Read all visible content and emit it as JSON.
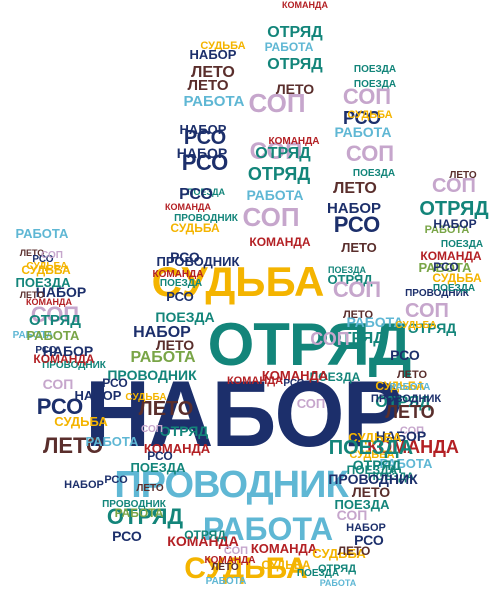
{
  "colors": {
    "navy": "#1c2f6b",
    "teal": "#13857a",
    "yellow": "#f4b400",
    "light_blue": "#5fb7d4",
    "red": "#b32024",
    "lavender": "#c6a6cc",
    "green": "#79a547",
    "dark_brown": "#5a2e2c"
  },
  "words": [
    {
      "text": "НАБОР",
      "color": "navy"
    },
    {
      "text": "ОТРЯД",
      "color": "teal"
    },
    {
      "text": "ПРОВОДНИК",
      "color": "light_blue"
    },
    {
      "text": "СУДЬБА",
      "color": "yellow"
    },
    {
      "text": "РАБОТА",
      "color": "light_blue"
    },
    {
      "text": "ЛЕТО",
      "color": "dark_brown"
    },
    {
      "text": "РСО",
      "color": "navy"
    },
    {
      "text": "КОМАНДА",
      "color": "red"
    },
    {
      "text": "СОП",
      "color": "lavender"
    },
    {
      "text": "ПОЕЗДА",
      "color": "teal"
    },
    {
      "text": "ОТРЯД",
      "color": "teal"
    },
    {
      "text": "ЛЕТО",
      "color": "dark_brown"
    },
    {
      "text": "РАБОТА",
      "color": "light_blue"
    },
    {
      "text": "СУДЬБА",
      "color": "yellow"
    },
    {
      "text": "НАБОР",
      "color": "navy"
    },
    {
      "text": "РСО",
      "color": "navy"
    },
    {
      "text": "СОП",
      "color": "lavender"
    },
    {
      "text": "ПОЕЗДА",
      "color": "teal"
    },
    {
      "text": "РАБОТА",
      "color": "light_blue"
    },
    {
      "text": "ОТРЯД",
      "color": "teal"
    },
    {
      "text": "РСО",
      "color": "navy"
    },
    {
      "text": "СОП",
      "color": "lavender"
    },
    {
      "text": "НАБОР",
      "color": "navy"
    },
    {
      "text": "ЛЕТО",
      "color": "dark_brown"
    },
    {
      "text": "КОМАНДА",
      "color": "red"
    },
    {
      "text": "ОТРЯД",
      "color": "teal"
    },
    {
      "text": "СОП",
      "color": "lavender"
    },
    {
      "text": "РАБОТА",
      "color": "light_blue"
    },
    {
      "text": "СУДЬБА",
      "color": "yellow"
    },
    {
      "text": "ПОЕЗДА",
      "color": "teal"
    },
    {
      "text": "РСО",
      "color": "navy"
    },
    {
      "text": "НАБОР",
      "color": "navy"
    },
    {
      "text": "КОМАНДА",
      "color": "red"
    },
    {
      "text": "ЛЕТО",
      "color": "dark_brown"
    },
    {
      "text": "СОП",
      "color": "lavender"
    },
    {
      "text": "ОТРЯД",
      "color": "teal"
    },
    {
      "text": "РАБОТА",
      "color": "light_blue"
    },
    {
      "text": "СУДЬБА",
      "color": "yellow"
    },
    {
      "text": "ПОЕЗДА",
      "color": "teal"
    },
    {
      "text": "ПРОВОДНИК",
      "color": "teal"
    },
    {
      "text": "РСО",
      "color": "navy"
    },
    {
      "text": "НАБОР",
      "color": "navy"
    },
    {
      "text": "ЛЕТО",
      "color": "dark_brown"
    },
    {
      "text": "КОМАНДА",
      "color": "red"
    },
    {
      "text": "СОП",
      "color": "lavender"
    },
    {
      "text": "ОТРЯД",
      "color": "teal"
    },
    {
      "text": "РАБОТА",
      "color": "green"
    },
    {
      "text": "ПОЕЗДА",
      "color": "teal"
    },
    {
      "text": "ЛЕТО",
      "color": "dark_brown"
    },
    {
      "text": "СУДЬБА",
      "color": "yellow"
    },
    {
      "text": "НАБОР",
      "color": "navy"
    },
    {
      "text": "РАБОТА",
      "color": "green"
    },
    {
      "text": "ПРОВОДНИК",
      "color": "navy"
    },
    {
      "text": "РСО",
      "color": "navy"
    },
    {
      "text": "ПОЕЗДА",
      "color": "teal"
    },
    {
      "text": "СОП",
      "color": "lavender"
    },
    {
      "text": "КОМАНДА",
      "color": "red"
    },
    {
      "text": "ЛЕТО",
      "color": "dark_brown"
    },
    {
      "text": "РСО",
      "color": "navy"
    },
    {
      "text": "ОТРЯД",
      "color": "teal"
    },
    {
      "text": "СОП",
      "color": "lavender"
    },
    {
      "text": "РАБОТА",
      "color": "light_blue"
    },
    {
      "text": "СУДЬБА",
      "color": "yellow"
    },
    {
      "text": "ПОЕЗДА",
      "color": "teal"
    },
    {
      "text": "КОМАНДА",
      "color": "red"
    },
    {
      "text": "РСО",
      "color": "navy"
    },
    {
      "text": "НАБОР",
      "color": "navy"
    },
    {
      "text": "ЛЕТО",
      "color": "dark_brown"
    },
    {
      "text": "СОП",
      "color": "lavender"
    },
    {
      "text": "РАБОТА",
      "color": "light_blue"
    },
    {
      "text": "СУДЬБА",
      "color": "yellow"
    },
    {
      "text": "ПРОВОДНИК",
      "color": "teal"
    },
    {
      "text": "ОТРЯД",
      "color": "teal"
    },
    {
      "text": "ПОЕЗДА",
      "color": "teal"
    },
    {
      "text": "РСО",
      "color": "navy"
    },
    {
      "text": "КОМАНДА",
      "color": "red"
    },
    {
      "text": "СОП",
      "color": "lavender"
    },
    {
      "text": "ЛЕТО",
      "color": "dark_brown"
    },
    {
      "text": "РАБОТА",
      "color": "green"
    },
    {
      "text": "НАБОР",
      "color": "navy"
    },
    {
      "text": "СУДЬБА",
      "color": "yellow"
    },
    {
      "text": "ПОЕЗДА",
      "color": "teal"
    },
    {
      "text": "ОТРЯД",
      "color": "teal"
    },
    {
      "text": "РСО",
      "color": "navy"
    },
    {
      "text": "ПРОВОДНИК",
      "color": "navy"
    },
    {
      "text": "КОМАНДА",
      "color": "red"
    },
    {
      "text": "СОП",
      "color": "lavender"
    },
    {
      "text": "ЛЕТО",
      "color": "dark_brown"
    },
    {
      "text": "РАБОТА",
      "color": "light_blue"
    },
    {
      "text": "СУДЬБА",
      "color": "yellow"
    },
    {
      "text": "ПОЕЗДА",
      "color": "teal"
    },
    {
      "text": "ОТРЯД",
      "color": "teal"
    },
    {
      "text": "РСО",
      "color": "navy"
    },
    {
      "text": "НАБОР",
      "color": "navy"
    },
    {
      "text": "ЛЕТО",
      "color": "dark_brown"
    },
    {
      "text": "КОМАНДА",
      "color": "red"
    },
    {
      "text": "СОП",
      "color": "lavender"
    },
    {
      "text": "ПРОВОДНИК",
      "color": "teal"
    },
    {
      "text": "РАБОТА",
      "color": "green"
    },
    {
      "text": "СУДЬБА",
      "color": "yellow"
    },
    {
      "text": "ПОЕЗДА",
      "color": "teal"
    },
    {
      "text": "РСО",
      "color": "navy"
    },
    {
      "text": "ОТРЯД",
      "color": "teal"
    },
    {
      "text": "ЛЕТО",
      "color": "dark_brown"
    },
    {
      "text": "СОП",
      "color": "lavender"
    },
    {
      "text": "КОМАНДА",
      "color": "red"
    },
    {
      "text": "НАБОР",
      "color": "navy"
    },
    {
      "text": "РАБОТА",
      "color": "light_blue"
    },
    {
      "text": "СУДЬБА",
      "color": "yellow"
    },
    {
      "text": "ПОЕЗДА",
      "color": "teal"
    },
    {
      "text": "ПРОВОДНИК",
      "color": "navy"
    },
    {
      "text": "РСО",
      "color": "navy"
    },
    {
      "text": "ЛЕТО",
      "color": "dark_brown"
    },
    {
      "text": "ОТРЯД",
      "color": "teal"
    },
    {
      "text": "СОП",
      "color": "lavender"
    },
    {
      "text": "КОМАНДА",
      "color": "red"
    },
    {
      "text": "РАБОТА",
      "color": "light_blue"
    },
    {
      "text": "СУДЬБА",
      "color": "yellow"
    },
    {
      "text": "ПОЕЗДА",
      "color": "teal"
    },
    {
      "text": "РСО",
      "color": "navy"
    },
    {
      "text": "НАБОР",
      "color": "navy"
    },
    {
      "text": "ЛЕТО",
      "color": "dark_brown"
    },
    {
      "text": "ОТРЯД",
      "color": "teal"
    },
    {
      "text": "КОМАНДА",
      "color": "red"
    },
    {
      "text": "СОП",
      "color": "lavender"
    },
    {
      "text": "РАБОТА",
      "color": "light_blue"
    },
    {
      "text": "СУДЬБА",
      "color": "yellow"
    },
    {
      "text": "ПОЕЗДА",
      "color": "teal"
    },
    {
      "text": "РСО",
      "color": "navy"
    },
    {
      "text": "ПРОВОДНИК",
      "color": "teal"
    },
    {
      "text": "ЛЕТО",
      "color": "dark_brown"
    },
    {
      "text": "ОТРЯД",
      "color": "teal"
    },
    {
      "text": "КОМАНДА",
      "color": "red"
    },
    {
      "text": "РАБОТА",
      "color": "green"
    },
    {
      "text": "НАБОР",
      "color": "navy"
    },
    {
      "text": "СУДЬБА",
      "color": "yellow"
    },
    {
      "text": "ПОЕЗДА",
      "color": "teal"
    },
    {
      "text": "РСО",
      "color": "navy"
    },
    {
      "text": "ЛЕТО",
      "color": "dark_brown"
    },
    {
      "text": "СОП",
      "color": "lavender"
    },
    {
      "text": "ОТРЯД",
      "color": "teal"
    },
    {
      "text": "КОМАНДА",
      "color": "red"
    },
    {
      "text": "РАБОТА",
      "color": "light_blue"
    },
    {
      "text": "СУДЬБА",
      "color": "yellow"
    },
    {
      "text": "ПОЕЗДА",
      "color": "teal"
    },
    {
      "text": "РСО",
      "color": "navy"
    },
    {
      "text": "НАБОР",
      "color": "navy"
    },
    {
      "text": "ПРОВОДНИК",
      "color": "navy"
    },
    {
      "text": "ЛЕТО",
      "color": "dark_brown"
    },
    {
      "text": "ОТРЯД",
      "color": "teal"
    },
    {
      "text": "КОМАНДА",
      "color": "red"
    },
    {
      "text": "СОП",
      "color": "lavender"
    },
    {
      "text": "РАБОТА",
      "color": "light_blue"
    },
    {
      "text": "СУДЬБА",
      "color": "yellow"
    },
    {
      "text": "ПОЕЗДА",
      "color": "teal"
    },
    {
      "text": "РСО",
      "color": "navy"
    },
    {
      "text": "ЛЕТО",
      "color": "dark_brown"
    }
  ]
}
